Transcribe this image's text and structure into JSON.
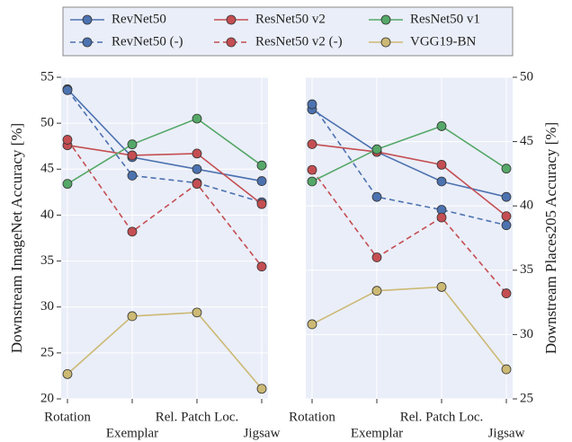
{
  "chart_data": [
    {
      "type": "line",
      "ylabel": "Downstream ImageNet Accuracy [%]",
      "categories": [
        "Rotation",
        "Exemplar",
        "Rel. Patch Loc.",
        "Jigsaw"
      ],
      "ylim": [
        20,
        55
      ],
      "yticks": [
        20,
        25,
        30,
        35,
        40,
        45,
        50,
        55
      ],
      "grid": true,
      "series": [
        {
          "name": "RevNet50",
          "color": "#4c72b0",
          "dashed": false,
          "values": [
            53.7,
            46.3,
            45.0,
            43.7
          ]
        },
        {
          "name": "RevNet50 (-)",
          "color": "#4c72b0",
          "dashed": true,
          "values": [
            53.6,
            44.3,
            43.5,
            41.4
          ]
        },
        {
          "name": "ResNet50 v2",
          "color": "#c44e52",
          "dashed": false,
          "values": [
            47.6,
            46.5,
            46.7,
            41.2
          ]
        },
        {
          "name": "ResNet50 v2 (-)",
          "color": "#c44e52",
          "dashed": true,
          "values": [
            48.2,
            38.2,
            43.4,
            34.4
          ]
        },
        {
          "name": "ResNet50 v1",
          "color": "#55a868",
          "dashed": false,
          "values": [
            43.4,
            47.7,
            50.5,
            45.4
          ]
        },
        {
          "name": "VGG19-BN",
          "color": "#ccb974",
          "dashed": false,
          "values": [
            22.7,
            29.0,
            29.4,
            21.1
          ]
        }
      ]
    },
    {
      "type": "line",
      "ylabel": "Downstream Places205 Accuracy [%]",
      "categories": [
        "Rotation",
        "Exemplar",
        "Rel. Patch Loc.",
        "Jigsaw"
      ],
      "ylim": [
        25,
        50
      ],
      "yticks": [
        25,
        30,
        35,
        40,
        45,
        50
      ],
      "grid": true,
      "series": [
        {
          "color": "#4c72b0",
          "dashed": false,
          "values": [
            47.5,
            44.2,
            41.9,
            40.7
          ]
        },
        {
          "color": "#4c72b0",
          "dashed": true,
          "values": [
            47.9,
            40.7,
            39.7,
            38.5
          ]
        },
        {
          "color": "#c44e52",
          "dashed": false,
          "values": [
            44.8,
            44.2,
            43.2,
            39.2
          ]
        },
        {
          "color": "#c44e52",
          "dashed": true,
          "values": [
            42.8,
            36.0,
            39.1,
            33.2
          ]
        },
        {
          "color": "#55a868",
          "dashed": false,
          "values": [
            41.9,
            44.4,
            46.2,
            42.9
          ]
        },
        {
          "color": "#ccb974",
          "dashed": false,
          "values": [
            30.8,
            33.4,
            33.7,
            27.3
          ]
        }
      ]
    }
  ]
}
